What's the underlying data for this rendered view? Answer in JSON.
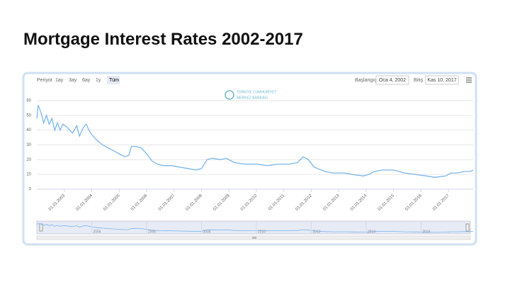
{
  "chart_data": {
    "type": "line",
    "title": "Mortgage Interest Rates 2002-2017",
    "range_label": "Periyot",
    "range_buttons": [
      "1ay",
      "3ay",
      "6ay",
      "1y",
      "Tüm"
    ],
    "from_label": "Başlangıç",
    "from_value": "Oca 4, 2002",
    "to_label": "Bitiş",
    "to_value": "Kas 10, 2017",
    "logo_lines": [
      "TÜRKİYE CUMHURİYET",
      "MERKEZ BANKASI"
    ],
    "x": [
      2002.0,
      2002.05,
      2002.15,
      2002.25,
      2002.35,
      2002.45,
      2002.55,
      2002.65,
      2002.75,
      2002.85,
      2002.95,
      2003.1,
      2003.3,
      2003.45,
      2003.55,
      2003.7,
      2003.8,
      2003.9,
      2004.0,
      2004.2,
      2004.4,
      2004.6,
      2004.8,
      2005.0,
      2005.2,
      2005.35,
      2005.45,
      2005.6,
      2005.8,
      2006.0,
      2006.2,
      2006.4,
      2006.6,
      2006.9,
      2007.2,
      2007.5,
      2007.8,
      2008.0,
      2008.2,
      2008.4,
      2008.7,
      2008.9,
      2009.2,
      2009.6,
      2010.0,
      2010.4,
      2010.8,
      2011.2,
      2011.5,
      2011.7,
      2011.9,
      2012.1,
      2012.5,
      2012.8,
      2013.2,
      2013.5,
      2013.9,
      2014.1,
      2014.3,
      2014.6,
      2015.0,
      2015.4,
      2015.8,
      2016.2,
      2016.5,
      2016.9,
      2017.1,
      2017.3,
      2017.6,
      2017.8,
      2017.9
    ],
    "series": [
      {
        "color": "#7cb5ec",
        "values": [
          48,
          57,
          52,
          45,
          50,
          44,
          48,
          40,
          45,
          40,
          44,
          42,
          38,
          43,
          36,
          42,
          44,
          40,
          37,
          33,
          30,
          28,
          26,
          24,
          22,
          23,
          29,
          29,
          28,
          24,
          19,
          17,
          16,
          16,
          15,
          14,
          13,
          14,
          20,
          21,
          20,
          21,
          18,
          17,
          17,
          16,
          17,
          17,
          18,
          22,
          20,
          15,
          12,
          11,
          11,
          10,
          9,
          10,
          12,
          13,
          13,
          11,
          10,
          9,
          8,
          9,
          11,
          11,
          12,
          12,
          13
        ]
      }
    ],
    "xlim": [
      2002.0,
      2017.9
    ],
    "xticks": [
      {
        "value": 2003,
        "label": "01.01.2003"
      },
      {
        "value": 2004,
        "label": "01.01.2004"
      },
      {
        "value": 2005,
        "label": "01.01.2005"
      },
      {
        "value": 2006,
        "label": "01.01.2006"
      },
      {
        "value": 2007,
        "label": "01.01.2007"
      },
      {
        "value": 2008,
        "label": "01.01.2008"
      },
      {
        "value": 2009,
        "label": "01.01.2009"
      },
      {
        "value": 2010,
        "label": "01.01.2010"
      },
      {
        "value": 2011,
        "label": "01.01.2011"
      },
      {
        "value": 2012,
        "label": "01.01.2012"
      },
      {
        "value": 2013,
        "label": "01.01.2013"
      },
      {
        "value": 2014,
        "label": "01.01.2014"
      },
      {
        "value": 2015,
        "label": "01.01.2015"
      },
      {
        "value": 2016,
        "label": "01.01.2016"
      },
      {
        "value": 2017,
        "label": "01.01.2017"
      }
    ],
    "ylim": [
      0,
      60
    ],
    "yticks": [
      0,
      10,
      20,
      30,
      40,
      50,
      60
    ],
    "grid": true,
    "navigator_ticks": [
      2004,
      2006,
      2008,
      2010,
      2012,
      2014,
      2016
    ]
  }
}
